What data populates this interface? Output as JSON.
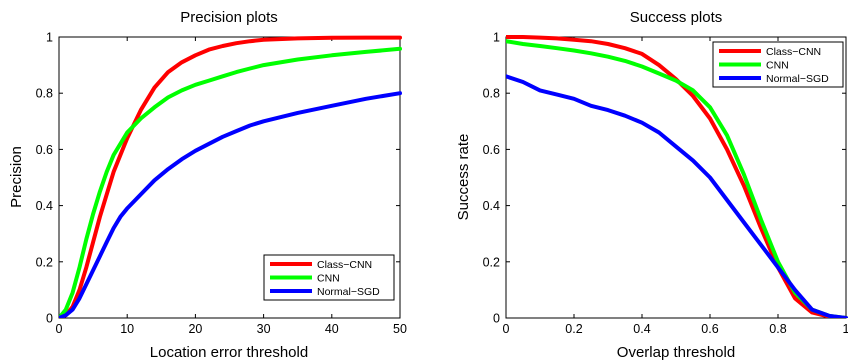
{
  "colors": {
    "red": "#ff0000",
    "green": "#00ff00",
    "blue": "#0000ff"
  },
  "chart_data": [
    {
      "type": "line",
      "title": "Precision plots",
      "xlabel": "Location error threshold",
      "ylabel": "Precision",
      "xlim": [
        0,
        50
      ],
      "ylim": [
        0,
        1
      ],
      "xticks": [
        0,
        10,
        20,
        30,
        40,
        50
      ],
      "yticks": [
        0,
        0.2,
        0.4,
        0.6,
        0.8,
        1
      ],
      "xtick_labels": [
        "0",
        "10",
        "20",
        "30",
        "40",
        "50"
      ],
      "ytick_labels": [
        "0",
        "0.2",
        "0.4",
        "0.6",
        "0.8",
        "1"
      ],
      "legend_position": "bottom-right",
      "grid": false,
      "series": [
        {
          "name": "Class−CNN",
          "color": "#ff0000",
          "x": [
            0,
            1,
            2,
            3,
            4,
            5,
            6,
            7,
            8,
            9,
            10,
            12,
            14,
            16,
            18,
            20,
            22,
            24,
            26,
            28,
            30,
            35,
            40,
            45,
            50
          ],
          "y": [
            0,
            0.01,
            0.04,
            0.1,
            0.18,
            0.27,
            0.36,
            0.44,
            0.52,
            0.58,
            0.64,
            0.74,
            0.82,
            0.875,
            0.91,
            0.935,
            0.955,
            0.968,
            0.978,
            0.985,
            0.99,
            0.995,
            0.997,
            0.998,
            0.998
          ]
        },
        {
          "name": "CNN",
          "color": "#00ff00",
          "x": [
            0,
            1,
            2,
            3,
            4,
            5,
            6,
            7,
            8,
            9,
            10,
            12,
            14,
            16,
            18,
            20,
            22,
            24,
            26,
            28,
            30,
            35,
            40,
            45,
            50
          ],
          "y": [
            0,
            0.03,
            0.09,
            0.18,
            0.28,
            0.37,
            0.45,
            0.52,
            0.58,
            0.62,
            0.66,
            0.71,
            0.75,
            0.785,
            0.81,
            0.83,
            0.845,
            0.86,
            0.875,
            0.888,
            0.9,
            0.92,
            0.935,
            0.947,
            0.958
          ]
        },
        {
          "name": "Normal−SGD",
          "color": "#0000ff",
          "x": [
            0,
            1,
            2,
            3,
            4,
            5,
            6,
            7,
            8,
            9,
            10,
            12,
            14,
            16,
            18,
            20,
            22,
            24,
            26,
            28,
            30,
            35,
            40,
            45,
            50
          ],
          "y": [
            0,
            0.01,
            0.03,
            0.07,
            0.12,
            0.17,
            0.22,
            0.27,
            0.32,
            0.36,
            0.39,
            0.44,
            0.49,
            0.53,
            0.565,
            0.595,
            0.62,
            0.645,
            0.665,
            0.685,
            0.7,
            0.73,
            0.755,
            0.78,
            0.8
          ]
        }
      ]
    },
    {
      "type": "line",
      "title": "Success plots",
      "xlabel": "Overlap threshold",
      "ylabel": "Success rate",
      "xlim": [
        0,
        1
      ],
      "ylim": [
        0,
        1
      ],
      "xticks": [
        0,
        0.2,
        0.4,
        0.6,
        0.8,
        1
      ],
      "yticks": [
        0,
        0.2,
        0.4,
        0.6,
        0.8,
        1
      ],
      "xtick_labels": [
        "0",
        "0.2",
        "0.4",
        "0.6",
        "0.8",
        "1"
      ],
      "ytick_labels": [
        "0",
        "0.2",
        "0.4",
        "0.6",
        "0.8",
        "1"
      ],
      "legend_position": "top-right",
      "grid": false,
      "series": [
        {
          "name": "Class−CNN",
          "color": "#ff0000",
          "x": [
            0,
            0.05,
            0.1,
            0.15,
            0.2,
            0.25,
            0.3,
            0.35,
            0.4,
            0.45,
            0.5,
            0.55,
            0.6,
            0.65,
            0.7,
            0.75,
            0.8,
            0.85,
            0.9,
            0.95,
            1
          ],
          "y": [
            1,
            1,
            0.998,
            0.995,
            0.99,
            0.985,
            0.975,
            0.96,
            0.94,
            0.9,
            0.85,
            0.79,
            0.71,
            0.6,
            0.47,
            0.32,
            0.18,
            0.07,
            0.02,
            0.005,
            0
          ]
        },
        {
          "name": "CNN",
          "color": "#00ff00",
          "x": [
            0,
            0.05,
            0.1,
            0.15,
            0.2,
            0.25,
            0.3,
            0.35,
            0.4,
            0.45,
            0.5,
            0.55,
            0.6,
            0.65,
            0.7,
            0.75,
            0.8,
            0.85,
            0.9,
            0.95,
            1
          ],
          "y": [
            0.985,
            0.975,
            0.968,
            0.96,
            0.952,
            0.942,
            0.93,
            0.915,
            0.895,
            0.87,
            0.845,
            0.81,
            0.75,
            0.65,
            0.51,
            0.35,
            0.2,
            0.09,
            0.03,
            0.008,
            0
          ]
        },
        {
          "name": "Normal−SGD",
          "color": "#0000ff",
          "x": [
            0,
            0.05,
            0.1,
            0.15,
            0.2,
            0.25,
            0.3,
            0.35,
            0.4,
            0.45,
            0.5,
            0.55,
            0.6,
            0.65,
            0.7,
            0.75,
            0.8,
            0.85,
            0.9,
            0.95,
            1
          ],
          "y": [
            0.86,
            0.84,
            0.81,
            0.795,
            0.78,
            0.755,
            0.74,
            0.72,
            0.695,
            0.66,
            0.61,
            0.56,
            0.5,
            0.42,
            0.34,
            0.26,
            0.18,
            0.1,
            0.03,
            0.008,
            0
          ]
        }
      ]
    }
  ]
}
